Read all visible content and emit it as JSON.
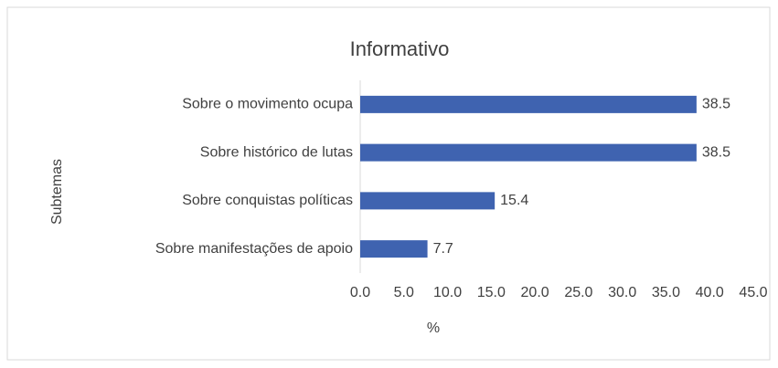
{
  "chart_data": {
    "type": "bar",
    "orientation": "horizontal",
    "title": "Informativo",
    "categories": [
      "Sobre o movimento ocupa",
      "Sobre histórico de lutas",
      "Sobre conquistas políticas",
      "Sobre manifestações de apoio"
    ],
    "values": [
      38.5,
      38.5,
      15.4,
      7.7
    ],
    "color": "#3f63b0",
    "xlabel": "%",
    "ylabel": "Subtemas",
    "xlim": [
      0,
      45
    ],
    "xticks": [
      {
        "value": 0,
        "label": "0.0"
      },
      {
        "value": 5,
        "label": "5.0"
      },
      {
        "value": 10,
        "label": "10.0"
      },
      {
        "value": 15,
        "label": "15.0"
      },
      {
        "value": 20,
        "label": "20.0"
      },
      {
        "value": 25,
        "label": "25.0"
      },
      {
        "value": 30,
        "label": "30.0"
      },
      {
        "value": 35,
        "label": "35.0"
      },
      {
        "value": 40,
        "label": "40.0"
      },
      {
        "value": 45,
        "label": "45.0"
      }
    ],
    "grid": false
  }
}
